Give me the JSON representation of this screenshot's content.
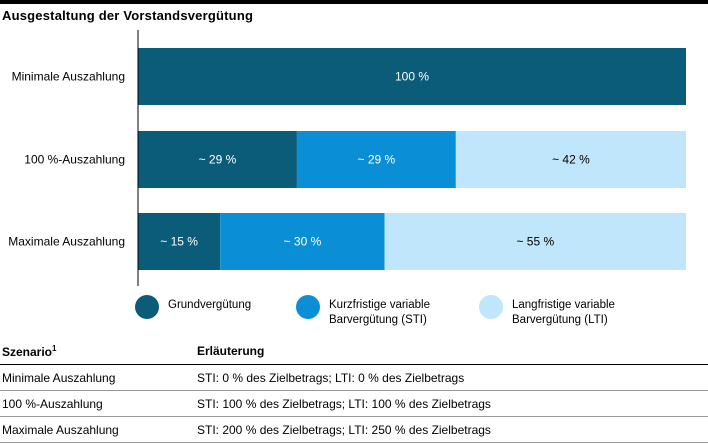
{
  "title": "Ausgestaltung der Vorstandsvergütung",
  "colors": {
    "grund": "#0a5c78",
    "sti": "#0a8fd6",
    "lti": "#bfe6fa"
  },
  "chart_data": {
    "type": "bar",
    "orientation": "horizontal",
    "stacked": true,
    "categories": [
      "Minimale Auszahlung",
      "100 %-Auszahlung",
      "Maximale Auszahlung"
    ],
    "series": [
      {
        "name": "Grundvergütung",
        "values": [
          100,
          29,
          15
        ],
        "labels": [
          "100 %",
          "~ 29 %",
          "~ 15 %"
        ]
      },
      {
        "name": "Kurzfristige variable Barvergütung (STI)",
        "values": [
          0,
          29,
          30
        ],
        "labels": [
          "",
          "~ 29 %",
          "~ 30 %"
        ]
      },
      {
        "name": "Langfristige variable Barvergütung (LTI)",
        "values": [
          0,
          42,
          55
        ],
        "labels": [
          "",
          "~ 42 %",
          "~ 55 %"
        ]
      }
    ],
    "legend": [
      "Grundvergütung",
      "Kurzfristige variable\nBarvergütung (STI)",
      "Langfristige variable\nBarvergütung (LTI)"
    ],
    "legend_position": "bottom"
  },
  "table": {
    "headers": [
      "Szenario",
      "Erläuterung"
    ],
    "header_footnote": "1",
    "rows": [
      [
        "Minimale Auszahlung",
        "STI: 0 % des Zielbetrags; LTI: 0 % des Zielbetrags"
      ],
      [
        "100 %-Auszahlung",
        "STI: 100 % des Zielbetrags; LTI: 100 % des Zielbetrags"
      ],
      [
        "Maximale Auszahlung",
        "STI: 200 % des Zielbetrags; LTI: 250 % des Zielbetrags"
      ]
    ]
  }
}
